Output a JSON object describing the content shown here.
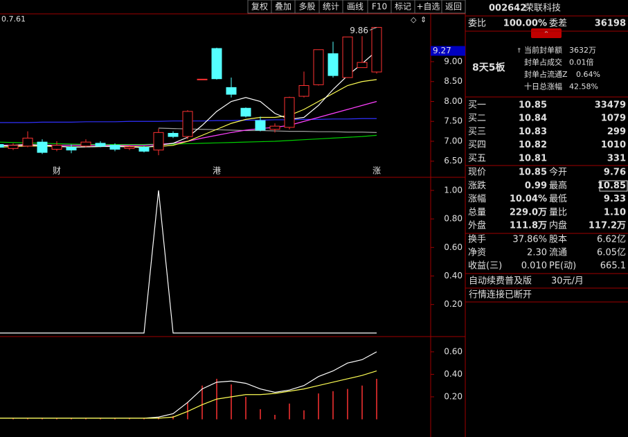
{
  "toolbar": [
    "复权",
    "叠加",
    "多股",
    "统计",
    "画线",
    "F10",
    "标记",
    "+自选",
    "返回"
  ],
  "price_chart": {
    "type": "candlestick",
    "corner_label": "0.7.61",
    "ylim": [
      6.113,
      10.2
    ],
    "yticks": [
      {
        "value": 9,
        "label": "9.00"
      },
      {
        "value": 8.5,
        "label": "8.50"
      },
      {
        "value": 8,
        "label": "8.00"
      },
      {
        "value": 7.5,
        "label": "7.50"
      },
      {
        "value": 7,
        "label": "7.00"
      },
      {
        "value": 6.5,
        "label": "6.50"
      }
    ],
    "high_label": 9.86,
    "last_value": 9.27,
    "open": [
      6.92,
      6.82,
      6.88,
      6.98,
      6.8,
      6.85,
      6.88,
      6.95,
      6.9,
      6.82,
      6.85,
      6.78,
      7.2,
      7.12,
      8.56,
      9.33,
      8.35,
      7.83,
      7.52,
      7.3,
      7.35,
      8.13,
      8.42,
      9.2,
      8.6,
      8.85,
      8.74
    ],
    "high": [
      6.98,
      6.95,
      7.25,
      7.05,
      7.0,
      6.92,
      7.05,
      7.0,
      6.95,
      6.9,
      6.88,
      7.32,
      7.25,
      7.78,
      8.56,
      9.35,
      8.6,
      7.85,
      7.62,
      7.45,
      8.12,
      8.75,
      9.3,
      9.5,
      9.62,
      9.64,
      9.86
    ],
    "low": [
      6.8,
      6.78,
      6.85,
      6.68,
      6.75,
      6.7,
      6.85,
      6.85,
      6.75,
      6.78,
      6.72,
      6.65,
      7.08,
      7.05,
      8.56,
      8.55,
      8.1,
      7.6,
      7.25,
      7.22,
      7.3,
      8.1,
      8.4,
      8.6,
      8.6,
      8.85,
      8.7
    ],
    "close": [
      6.85,
      6.9,
      7.08,
      6.72,
      6.9,
      6.78,
      6.98,
      6.88,
      6.8,
      6.86,
      6.75,
      7.22,
      7.12,
      7.75,
      8.56,
      8.57,
      8.18,
      7.63,
      7.28,
      7.38,
      8.1,
      8.4,
      9.3,
      8.65,
      9.62,
      8.98,
      9.86
    ],
    "up_color": "#ff3232",
    "down_color": "#54ffff",
    "series": [
      {
        "color": "#3030ff",
        "values": [
          7.47,
          7.47,
          7.47,
          7.48,
          7.48,
          7.48,
          7.49,
          7.49,
          7.49,
          7.5,
          7.5,
          7.5,
          7.51,
          7.51,
          7.51,
          7.52,
          7.52,
          7.53,
          7.53,
          7.54,
          7.54,
          7.55,
          7.55,
          7.56,
          7.56,
          7.57,
          7.57
        ]
      },
      {
        "color": "#a0a0a0",
        "values": [
          null,
          null,
          null,
          null,
          null,
          null,
          null,
          null,
          null,
          null,
          null,
          7.33,
          7.32,
          7.31,
          7.3,
          7.29,
          7.28,
          7.27,
          7.27,
          7.26,
          7.25,
          7.25,
          7.24,
          7.24,
          7.23,
          7.23,
          7.22
        ]
      },
      {
        "color": "#00d000",
        "values": [
          6.98,
          6.97,
          6.96,
          6.95,
          6.94,
          6.93,
          6.92,
          6.92,
          6.92,
          6.92,
          6.92,
          6.93,
          6.93,
          6.94,
          6.95,
          6.96,
          6.97,
          6.98,
          6.99,
          7.0,
          7.02,
          7.04,
          7.06,
          7.08,
          7.1,
          7.12,
          7.15
        ]
      },
      {
        "color": "#ff40ff",
        "values": [
          6.9,
          6.9,
          6.9,
          6.9,
          6.9,
          6.9,
          6.9,
          6.9,
          6.9,
          6.9,
          6.9,
          6.92,
          6.95,
          7.0,
          7.08,
          7.15,
          7.22,
          7.28,
          7.32,
          7.35,
          7.4,
          7.5,
          7.6,
          7.7,
          7.8,
          7.9,
          8.0
        ]
      },
      {
        "color": "#ffff54",
        "values": [
          6.85,
          6.87,
          6.88,
          6.88,
          6.87,
          6.86,
          6.86,
          6.87,
          6.88,
          6.87,
          6.86,
          6.87,
          6.9,
          7.0,
          7.15,
          7.3,
          7.45,
          7.55,
          7.6,
          7.6,
          7.65,
          7.8,
          8.0,
          8.2,
          8.4,
          8.5,
          8.55
        ]
      },
      {
        "color": "#ffffff",
        "values": [
          6.88,
          6.9,
          6.92,
          6.9,
          6.88,
          6.85,
          6.86,
          6.87,
          6.87,
          6.86,
          6.84,
          6.9,
          6.95,
          7.1,
          7.4,
          7.75,
          8.0,
          8.1,
          8.0,
          7.7,
          7.55,
          7.6,
          7.9,
          8.3,
          8.65,
          8.95,
          9.27
        ]
      }
    ],
    "markers": [
      {
        "index": 4,
        "label": "财",
        "color": "#54ffff"
      },
      {
        "index": 15,
        "label": "港",
        "color": "#54ff54"
      },
      {
        "index": 26,
        "label": "涨",
        "color": "#ff5050"
      }
    ]
  },
  "indicator_chart": {
    "type": "line",
    "ylim": [
      -0.02,
      1.087
    ],
    "yticks": [
      {
        "value": 1,
        "label": "1.00"
      },
      {
        "value": 0.8,
        "label": "0.80"
      },
      {
        "value": 0.6,
        "label": "0.60"
      },
      {
        "value": 0.4,
        "label": "0.40"
      },
      {
        "value": 0.2,
        "label": "0.20"
      }
    ],
    "color": "#ffffff",
    "values": [
      0,
      0,
      0,
      0,
      0,
      0,
      0,
      0,
      0,
      0,
      0,
      1,
      0,
      0,
      0,
      0,
      0,
      0,
      0,
      0,
      0,
      0,
      0,
      0,
      0,
      0,
      0
    ]
  },
  "volume_chart": {
    "type": "bar",
    "ylim": [
      -0.157,
      0.729
    ],
    "yticks": [
      {
        "value": 0.6,
        "label": "0.60"
      },
      {
        "value": 0.4,
        "label": "0.40"
      },
      {
        "value": 0.2,
        "label": "0.20"
      }
    ],
    "bars": {
      "color": "#ff3232",
      "values": [
        0.01,
        0.01,
        0.01,
        0.01,
        0.01,
        0.01,
        0.01,
        0.01,
        0.01,
        0.01,
        0.01,
        0.02,
        0.03,
        0.15,
        0.3,
        0.36,
        0.31,
        0.2,
        0.09,
        0.04,
        0.14,
        0.08,
        0.23,
        0.25,
        0.27,
        0.3,
        0.36
      ]
    },
    "series": [
      {
        "color": "#ffffff",
        "values": [
          0.01,
          0.01,
          0.01,
          0.01,
          0.01,
          0.01,
          0.01,
          0.01,
          0.01,
          0.01,
          0.01,
          0.02,
          0.05,
          0.15,
          0.27,
          0.33,
          0.34,
          0.32,
          0.27,
          0.24,
          0.26,
          0.3,
          0.38,
          0.43,
          0.5,
          0.53,
          0.6
        ]
      },
      {
        "color": "#ffff54",
        "values": [
          0.01,
          0.01,
          0.01,
          0.01,
          0.01,
          0.01,
          0.01,
          0.01,
          0.01,
          0.01,
          0.01,
          0.01,
          0.02,
          0.07,
          0.13,
          0.18,
          0.2,
          0.22,
          0.22,
          0.23,
          0.25,
          0.27,
          0.3,
          0.33,
          0.36,
          0.39,
          0.43
        ]
      }
    ]
  },
  "header": {
    "code": "002642",
    "name": "荣联科技"
  },
  "order_ratio": [
    "委比",
    "100.00%",
    "委差",
    "36198"
  ],
  "limit_info": {
    "title": "8天5板",
    "rows": [
      [
        "当前封单额",
        "3632万"
      ],
      [
        "封单占成交",
        "0.01倍"
      ],
      [
        "封单占流通Z",
        "0.64%"
      ],
      [
        "十日总涨幅",
        "42.58%"
      ]
    ]
  },
  "bids": [
    [
      "买一",
      "10.85",
      "33479"
    ],
    [
      "买二",
      "10.84",
      "1079"
    ],
    [
      "买三",
      "10.83",
      "299"
    ],
    [
      "买四",
      "10.82",
      "1010"
    ],
    [
      "买五",
      "10.81",
      "331"
    ]
  ],
  "quote": [
    [
      "现价",
      "10.85",
      "今开",
      "9.76"
    ],
    [
      "涨跌",
      "0.99",
      "最高",
      "10.85"
    ],
    [
      "涨幅",
      "10.04%",
      "最低",
      "9.33"
    ],
    [
      "总量",
      "229.0万",
      "量比",
      "1.10"
    ],
    [
      "外盘",
      "111.8万",
      "内盘",
      "117.2万"
    ]
  ],
  "fundamentals": [
    [
      "换手",
      "37.86%",
      "股本",
      "6.62亿"
    ],
    [
      "净资",
      "2.30",
      "流通",
      "6.05亿"
    ],
    [
      "收益(三)",
      "0.010",
      "PE(动)",
      "665.1"
    ]
  ],
  "promo": {
    "text": "自动续费普及版",
    "price": "30元/月"
  },
  "status": "行情连接已断开"
}
